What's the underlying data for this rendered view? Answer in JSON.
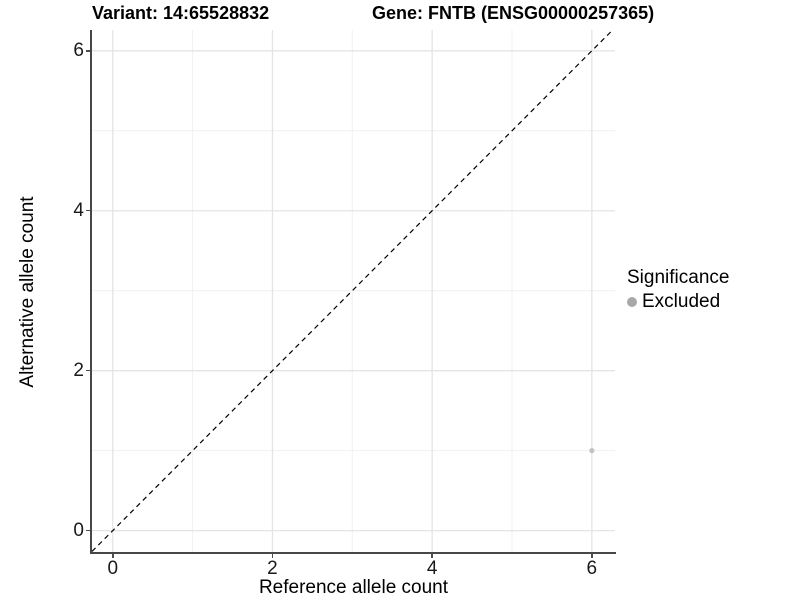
{
  "titles": {
    "variant": "Variant: 14:65528832",
    "gene": "Gene: FNTB (ENSG00000257365)"
  },
  "axes": {
    "x_label": "Reference allele count",
    "y_label": "Alternative allele count",
    "x_ticks": [
      "0",
      "2",
      "4",
      "6"
    ],
    "y_ticks": [
      "0",
      "2",
      "4",
      "6"
    ]
  },
  "legend": {
    "title": "Significance",
    "items": [
      {
        "label": "Excluded",
        "color": "#a8a8a8"
      }
    ]
  },
  "chart_data": {
    "type": "scatter",
    "title_left": "Variant: 14:65528832",
    "title_right": "Gene: FNTB (ENSG00000257365)",
    "xlabel": "Reference allele count",
    "ylabel": "Alternative allele count",
    "xlim": [
      -0.26,
      6.29
    ],
    "ylim": [
      -0.28,
      6.26
    ],
    "x_major_ticks": [
      0,
      2,
      4,
      6
    ],
    "y_major_ticks": [
      0,
      2,
      4,
      6
    ],
    "x_minor_gridlines": [
      1,
      3,
      5
    ],
    "y_minor_gridlines": [
      1,
      3,
      5
    ],
    "grid": true,
    "legend_position": "right",
    "series": [
      {
        "name": "Excluded",
        "color": "#c3c3c3",
        "point_radius": 2.6,
        "points": [
          {
            "x": 6,
            "y": 1
          }
        ]
      }
    ],
    "reference_line": {
      "type": "identity",
      "equation": "y = x",
      "style": "dashed",
      "color": "#000000"
    },
    "style_colors": {
      "grid_major": "#e4e4e4",
      "grid_minor": "#f1f1f1",
      "axis_line": "#474747",
      "tick_mark": "#4d4d4d",
      "background": "#ffffff"
    }
  }
}
